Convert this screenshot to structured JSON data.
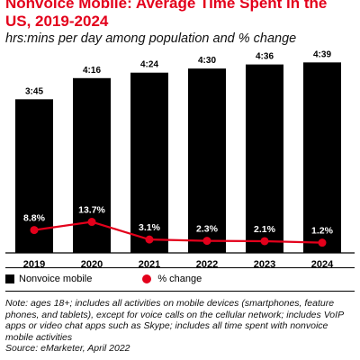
{
  "header": {
    "title": "Nonvoice Mobile: Average Time Spent in the US, 2019-2024",
    "subtitle": "hrs:mins per day among population and % change"
  },
  "chart_data": {
    "type": "bar",
    "categories": [
      "2019",
      "2020",
      "2021",
      "2022",
      "2023",
      "2024"
    ],
    "series": [
      {
        "name": "Nonvoice mobile",
        "type": "bar",
        "values_minutes": [
          225,
          256,
          264,
          270,
          276,
          279
        ],
        "labels": [
          "3:45",
          "4:16",
          "4:24",
          "4:30",
          "4:36",
          "4:39"
        ],
        "color": "#000000"
      },
      {
        "name": "% change",
        "type": "line",
        "values": [
          8.8,
          13.7,
          3.1,
          2.3,
          2.1,
          1.2
        ],
        "labels": [
          "8.8%",
          "13.7%",
          "3.1%",
          "2.3%",
          "2.1%",
          "1.2%"
        ],
        "color": "#e3001b"
      }
    ],
    "legend_position": "bottom-left",
    "grid": false
  },
  "legend": {
    "bar_label": "Nonvoice mobile",
    "line_label": "% change"
  },
  "note": "Note: ages 18+; includes all activities on mobile devices (smartphones, feature phones, and tablets), except for voice calls on the cellular network; includes VoIP apps or video chat apps such as Skype; includes all time spent with nonvoice mobile activities",
  "source": "Source: eMarketer, April 2022"
}
